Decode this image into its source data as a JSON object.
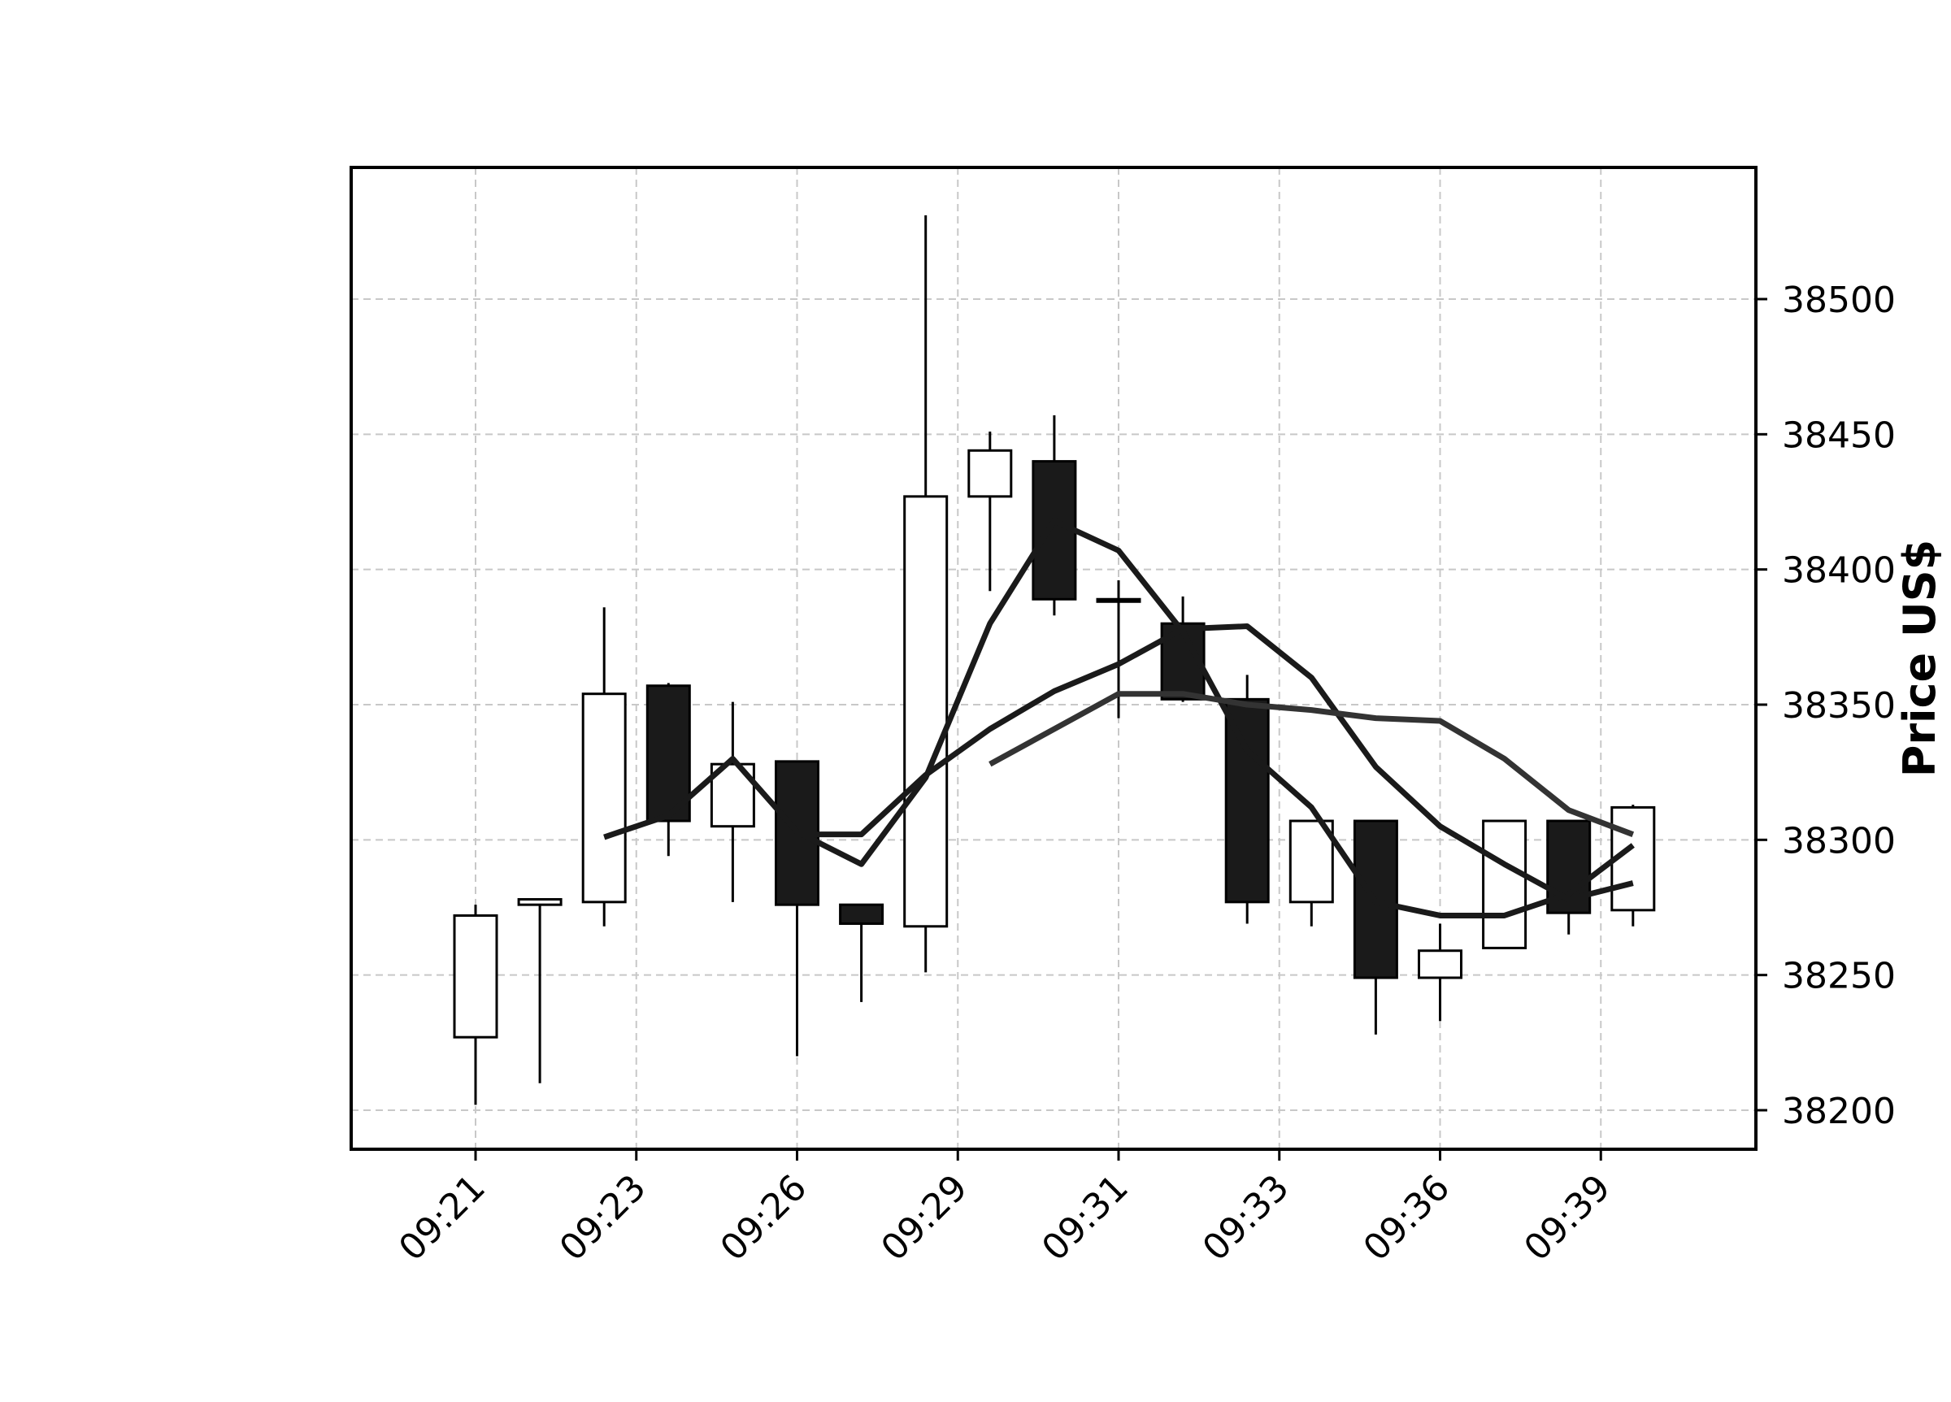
{
  "chart_data": {
    "type": "candlestick",
    "title": "",
    "xlabel": "",
    "ylabel": "Price US$",
    "y_axis_position": "right",
    "ylim": [
      38185,
      38547
    ],
    "yticks": [
      38200,
      38250,
      38300,
      38350,
      38400,
      38450,
      38500
    ],
    "xticks": [
      {
        "index": 0,
        "label": "09:21"
      },
      {
        "index": 2.5,
        "label": "09:23"
      },
      {
        "index": 5,
        "label": "09:26"
      },
      {
        "index": 7.5,
        "label": "09:29"
      },
      {
        "index": 10,
        "label": "09:31"
      },
      {
        "index": 12.5,
        "label": "09:33"
      },
      {
        "index": 15,
        "label": "09:36"
      },
      {
        "index": 17.5,
        "label": "09:39"
      }
    ],
    "grid": true,
    "colors": {
      "up": "#ffffff",
      "down": "#1a1a1a",
      "edge": "#000000",
      "ma": "#1a1a1a",
      "ma_alt": "#333333",
      "grid": "#c8c8c8"
    },
    "candles": [
      {
        "open": 38227,
        "high": 38276,
        "low": 38202,
        "close": 38272
      },
      {
        "open": 38276,
        "high": 38278,
        "low": 38210,
        "close": 38278
      },
      {
        "open": 38277,
        "high": 38386,
        "low": 38268,
        "close": 38354
      },
      {
        "open": 38357,
        "high": 38358,
        "low": 38294,
        "close": 38307
      },
      {
        "open": 38305,
        "high": 38351,
        "low": 38277,
        "close": 38328
      },
      {
        "open": 38329,
        "high": 38329,
        "low": 38220,
        "close": 38276
      },
      {
        "open": 38276,
        "high": 38276,
        "low": 38240,
        "close": 38269
      },
      {
        "open": 38268,
        "high": 38531,
        "low": 38251,
        "close": 38427
      },
      {
        "open": 38427,
        "high": 38451,
        "low": 38392,
        "close": 38444
      },
      {
        "open": 38440,
        "high": 38457,
        "low": 38383,
        "close": 38389
      },
      {
        "open": 38389,
        "high": 38396,
        "low": 38345,
        "close": 38389
      },
      {
        "open": 38380,
        "high": 38390,
        "low": 38351,
        "close": 38352
      },
      {
        "open": 38352,
        "high": 38361,
        "low": 38269,
        "close": 38277
      },
      {
        "open": 38277,
        "high": 38307,
        "low": 38268,
        "close": 38307
      },
      {
        "open": 38307,
        "high": 38307,
        "low": 38228,
        "close": 38249
      },
      {
        "open": 38249,
        "high": 38269,
        "low": 38233,
        "close": 38259
      },
      {
        "open": 38260,
        "high": 38307,
        "low": 38260,
        "close": 38307
      },
      {
        "open": 38307,
        "high": 38307,
        "low": 38265,
        "close": 38273
      },
      {
        "open": 38274,
        "high": 38313,
        "low": 38268,
        "close": 38312
      }
    ],
    "series": [
      {
        "type": "line",
        "start_index": 2,
        "values": [
          38301,
          38309,
          38330,
          38303,
          38291,
          38323,
          38380,
          38418,
          38407,
          38377,
          38333,
          38312,
          38277,
          38272,
          38272,
          38280,
          38298
        ]
      },
      {
        "type": "line",
        "start_index": 5,
        "values": [
          38302,
          38302,
          38324,
          38341,
          38355,
          38365,
          38378,
          38379,
          38360,
          38327,
          38305,
          38291,
          38278,
          38284
        ]
      },
      {
        "type": "line",
        "start_index": 8,
        "values": [
          38328,
          38341,
          38354,
          38354,
          38350,
          38348,
          38345,
          38344,
          38330,
          38311,
          38302
        ]
      }
    ]
  }
}
